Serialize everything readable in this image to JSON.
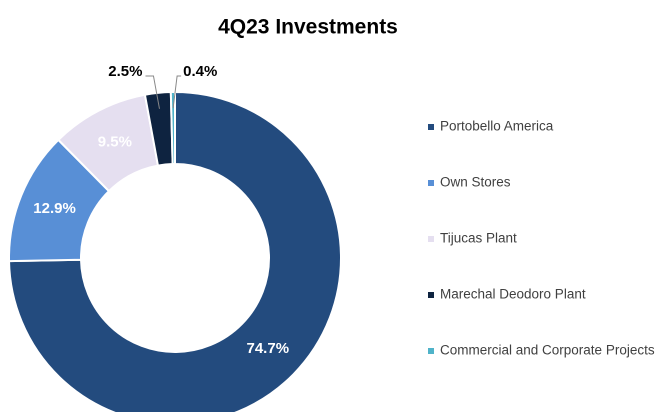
{
  "chart_data": {
    "type": "pie",
    "title": "4Q23 Investments",
    "categories": [
      "Portobello America",
      "Own Stores",
      "Tijucas Plant",
      "Marechal Deodoro Plant",
      "Commercial and Corporate Projects"
    ],
    "values": [
      74.7,
      12.9,
      9.5,
      2.5,
      0.4
    ],
    "value_labels": [
      "74.7%",
      "12.9%",
      "9.5%",
      "2.5%",
      "0.4%"
    ],
    "colors": [
      "#234b7e",
      "#588fd6",
      "#e5dff0",
      "#0e2340",
      "#4fb3c9"
    ],
    "legend": "right"
  }
}
